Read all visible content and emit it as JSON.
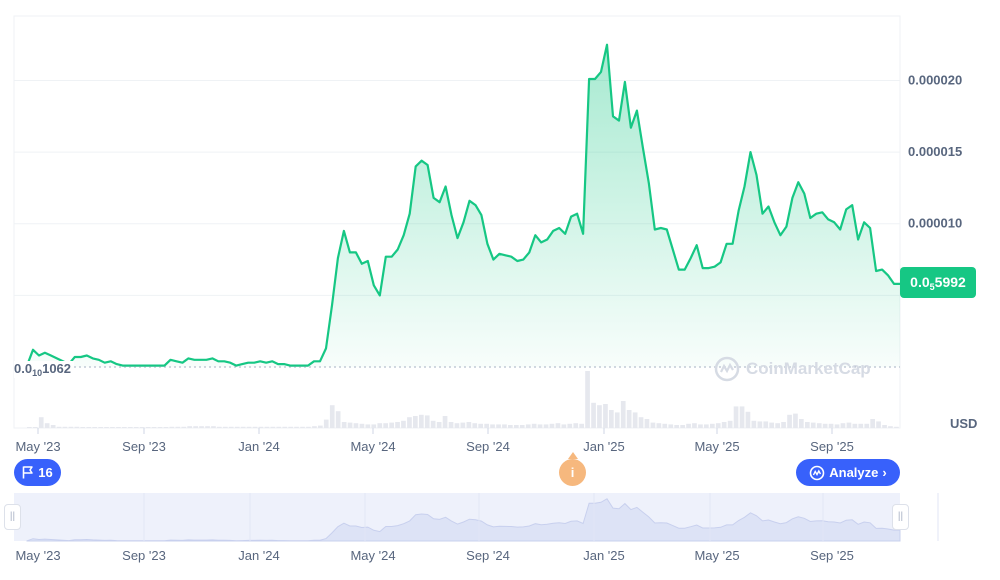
{
  "chart_data": {
    "type": "area",
    "unit": "USD",
    "ylim": [
      0,
      2.45e-05
    ],
    "yticks": [
      "0.000020",
      "0.000015",
      "0.000010"
    ],
    "xticks": [
      "May '23",
      "Sep '23",
      "Jan '24",
      "May '24",
      "Sep '24",
      "Jan '25",
      "May '25",
      "Sep '25"
    ],
    "current_price": {
      "prefix": "0.0",
      "zeros": "5",
      "digits": "5992"
    },
    "min_label": {
      "prefix": "0.0",
      "zeros": "10",
      "digits": "1062"
    },
    "price_series": [
      1e-07,
      1.2e-06,
      8e-07,
      1e-06,
      8e-07,
      6e-07,
      4e-07,
      2e-07,
      7e-07,
      7e-07,
      8e-07,
      6e-07,
      5e-07,
      3e-07,
      4e-07,
      2e-07,
      1e-07,
      1e-07,
      1e-07,
      1e-07,
      1e-07,
      1e-07,
      1e-07,
      1e-07,
      5e-07,
      4e-07,
      3e-07,
      6e-07,
      5e-07,
      5e-07,
      5e-07,
      6e-07,
      4e-07,
      4e-07,
      3e-07,
      1e-07,
      2e-07,
      3e-07,
      3e-07,
      4e-07,
      3e-07,
      4e-07,
      2e-07,
      2e-07,
      1e-07,
      1e-07,
      1e-07,
      1e-07,
      4e-07,
      4e-07,
      1.3e-06,
      4.3e-06,
      7.6e-06,
      9.5e-06,
      8e-06,
      8e-06,
      7.2e-06,
      7.4e-06,
      5.7e-06,
      5e-06,
      7.7e-06,
      7.7e-06,
      8.2e-06,
      9.2e-06,
      1.07e-05,
      1.4e-05,
      1.44e-05,
      1.41e-05,
      1.18e-05,
      1.15e-05,
      1.26e-05,
      1.06e-05,
      9e-06,
      1.01e-05,
      1.16e-05,
      1.13e-05,
      1.06e-05,
      8.6e-06,
      7.5e-06,
      7.9e-06,
      7.8e-06,
      7.7e-06,
      7.4e-06,
      7.5e-06,
      8e-06,
      9.2e-06,
      8.7e-06,
      8.9e-06,
      9.5e-06,
      9.7e-06,
      9.3e-06,
      1.05e-05,
      1.07e-05,
      9.3e-06,
      2.01e-05,
      2.01e-05,
      2.06e-05,
      2.25e-05,
      1.75e-05,
      1.72e-05,
      1.99e-05,
      1.67e-05,
      1.79e-05,
      1.53e-05,
      1.28e-05,
      9.6e-06,
      9.7e-06,
      9.6e-06,
      8.2e-06,
      6.8e-06,
      6.8e-06,
      7.6e-06,
      8.5e-06,
      6.9e-06,
      6.9e-06,
      7e-06,
      7.3e-06,
      8.6e-06,
      8.6e-06,
      1.09e-05,
      1.26e-05,
      1.5e-05,
      1.34e-05,
      1.07e-05,
      1.12e-05,
      1.01e-05,
      9.2e-06,
      9.8e-06,
      1.18e-05,
      1.29e-05,
      1.21e-05,
      1.04e-05,
      1.07e-05,
      1.08e-05,
      1.03e-05,
      1.01e-05,
      9.6e-06,
      1.1e-05,
      1.13e-05,
      8.9e-06,
      1.01e-05,
      9.7e-06,
      6.7e-06,
      6.8e-06,
      6.4e-06,
      5.8e-06,
      5.8e-06
    ],
    "volume_series": [
      0,
      0,
      0.18,
      0.08,
      0.05,
      0.02,
      0.02,
      0.02,
      0.02,
      0.01,
      0.01,
      0.01,
      0.01,
      0.01,
      0.01,
      0.01,
      0.01,
      0.01,
      0.01,
      0.01,
      0.01,
      0.01,
      0.01,
      0.01,
      0.02,
      0.02,
      0.02,
      0.03,
      0.03,
      0.03,
      0.03,
      0.03,
      0.02,
      0.02,
      0.02,
      0.02,
      0.02,
      0.02,
      0.02,
      0.02,
      0.02,
      0.02,
      0.02,
      0.02,
      0.02,
      0.02,
      0.02,
      0.02,
      0.03,
      0.04,
      0.14,
      0.38,
      0.28,
      0.1,
      0.09,
      0.08,
      0.07,
      0.06,
      0.06,
      0.08,
      0.08,
      0.09,
      0.1,
      0.12,
      0.18,
      0.2,
      0.22,
      0.21,
      0.12,
      0.1,
      0.2,
      0.1,
      0.08,
      0.09,
      0.1,
      0.08,
      0.07,
      0.07,
      0.06,
      0.06,
      0.06,
      0.05,
      0.05,
      0.05,
      0.06,
      0.07,
      0.06,
      0.06,
      0.07,
      0.08,
      0.06,
      0.07,
      0.08,
      0.07,
      0.95,
      0.42,
      0.38,
      0.4,
      0.3,
      0.26,
      0.45,
      0.3,
      0.26,
      0.18,
      0.15,
      0.09,
      0.08,
      0.07,
      0.06,
      0.05,
      0.05,
      0.07,
      0.08,
      0.06,
      0.06,
      0.07,
      0.08,
      0.1,
      0.12,
      0.36,
      0.36,
      0.27,
      0.12,
      0.11,
      0.11,
      0.09,
      0.08,
      0.1,
      0.22,
      0.24,
      0.15,
      0.1,
      0.09,
      0.08,
      0.07,
      0.07,
      0.06,
      0.08,
      0.09,
      0.07,
      0.07,
      0.07,
      0.15,
      0.11,
      0.05,
      0.03,
      0.02
    ]
  },
  "flag_badge": {
    "icon": "flag-icon",
    "count": "16"
  },
  "info_badge": {
    "icon": "info-icon",
    "label": "i"
  },
  "analyze_button": {
    "icon": "coinmarketcap-logo-icon",
    "label": "Analyze",
    "chevron": "›"
  },
  "watermark": {
    "text": "CoinMarketCap"
  },
  "colors": {
    "line": "#16c784",
    "volume": "#e6e8ee",
    "navigator": "#e3e8f9"
  }
}
